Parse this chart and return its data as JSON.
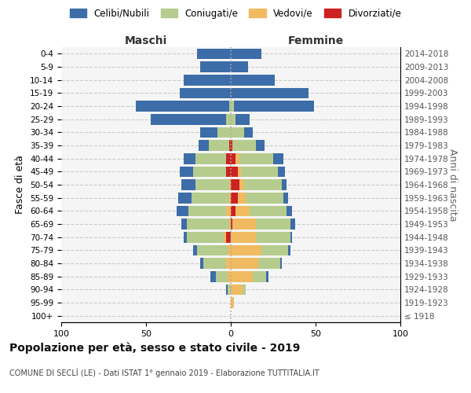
{
  "age_groups": [
    "100+",
    "95-99",
    "90-94",
    "85-89",
    "80-84",
    "75-79",
    "70-74",
    "65-69",
    "60-64",
    "55-59",
    "50-54",
    "45-49",
    "40-44",
    "35-39",
    "30-34",
    "25-29",
    "20-24",
    "15-19",
    "10-14",
    "5-9",
    "0-4"
  ],
  "birth_years": [
    "≤ 1918",
    "1919-1923",
    "1924-1928",
    "1929-1933",
    "1934-1938",
    "1939-1943",
    "1944-1948",
    "1949-1953",
    "1954-1958",
    "1959-1963",
    "1964-1968",
    "1969-1973",
    "1974-1978",
    "1979-1983",
    "1984-1988",
    "1989-1993",
    "1994-1998",
    "1999-2003",
    "2004-2008",
    "2009-2013",
    "2014-2018"
  ],
  "males": {
    "celibi": [
      0,
      0,
      1,
      3,
      2,
      2,
      2,
      3,
      7,
      8,
      8,
      8,
      7,
      6,
      10,
      44,
      55,
      30,
      28,
      18,
      20
    ],
    "coniugati": [
      0,
      0,
      2,
      7,
      13,
      18,
      22,
      25,
      22,
      22,
      20,
      19,
      18,
      12,
      8,
      3,
      1,
      0,
      0,
      0,
      0
    ],
    "vedovi": [
      0,
      0,
      0,
      2,
      3,
      2,
      1,
      1,
      3,
      1,
      1,
      0,
      0,
      0,
      0,
      0,
      0,
      0,
      0,
      0,
      0
    ],
    "divorziati": [
      0,
      0,
      0,
      0,
      0,
      0,
      3,
      0,
      0,
      0,
      0,
      3,
      3,
      1,
      0,
      0,
      0,
      0,
      0,
      0,
      0
    ]
  },
  "females": {
    "nubili": [
      0,
      0,
      0,
      1,
      1,
      1,
      1,
      3,
      3,
      3,
      3,
      4,
      6,
      5,
      5,
      8,
      47,
      46,
      26,
      10,
      18
    ],
    "coniugate": [
      0,
      0,
      2,
      8,
      13,
      16,
      20,
      20,
      22,
      22,
      22,
      22,
      20,
      14,
      8,
      3,
      2,
      0,
      0,
      0,
      0
    ],
    "vedove": [
      0,
      2,
      7,
      13,
      16,
      18,
      15,
      14,
      8,
      5,
      3,
      2,
      2,
      0,
      0,
      0,
      0,
      0,
      0,
      0,
      0
    ],
    "divorziate": [
      0,
      0,
      0,
      0,
      0,
      0,
      0,
      1,
      3,
      4,
      5,
      4,
      3,
      1,
      0,
      0,
      0,
      0,
      0,
      0,
      0
    ]
  },
  "colors": {
    "celibi": "#3d6da8",
    "coniugati": "#b5cc8e",
    "vedovi": "#f0bb60",
    "divorziati": "#cc2222"
  },
  "title": "Popolazione per età, sesso e stato civile - 2019",
  "subtitle": "COMUNE DI SECLÌ (LE) - Dati ISTAT 1° gennaio 2019 - Elaborazione TUTTITALIA.IT",
  "xlabel_left": "Maschi",
  "xlabel_right": "Femmine",
  "ylabel_left": "Fasce di età",
  "ylabel_right": "Anni di nascita",
  "xlim": 100,
  "legend_labels": [
    "Celibi/Nubili",
    "Coniugati/e",
    "Vedovi/e",
    "Divorziati/e"
  ]
}
